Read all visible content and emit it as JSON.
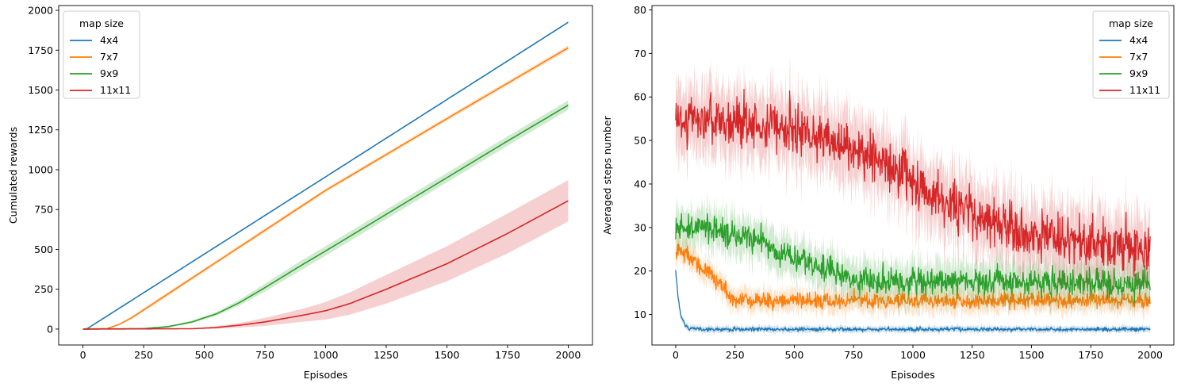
{
  "colors": {
    "4x4": "#1f77b4",
    "7x7": "#ff7f0e",
    "9x9": "#2ca02c",
    "11x11": "#d62728"
  },
  "chart_data": [
    {
      "type": "line",
      "xlabel": "Episodes",
      "ylabel": "Cumulated rewards",
      "xlim": [
        -100,
        2100
      ],
      "ylim": [
        -100,
        2030
      ],
      "xticks": [
        0,
        250,
        500,
        750,
        1000,
        1250,
        1500,
        1750,
        2000
      ],
      "yticks": [
        0,
        250,
        500,
        750,
        1000,
        1250,
        1500,
        1750,
        2000
      ],
      "legend": {
        "title": "map size",
        "position": "top-left"
      },
      "confidence_band": true,
      "series": [
        {
          "name": "4x4",
          "x": [
            0,
            15,
            2000
          ],
          "y": [
            0,
            0,
            1925
          ],
          "band": [
            0,
            0,
            5
          ]
        },
        {
          "name": "7x7",
          "x": [
            0,
            100,
            150,
            200,
            250,
            300,
            500,
            1000,
            1500,
            2000
          ],
          "y": [
            0,
            3,
            30,
            70,
            120,
            170,
            370,
            870,
            1320,
            1765
          ],
          "band": [
            0,
            1,
            5,
            8,
            10,
            12,
            12,
            12,
            13,
            15
          ]
        },
        {
          "name": "9x9",
          "x": [
            0,
            250,
            350,
            450,
            550,
            650,
            750,
            900,
            1000,
            1250,
            1500,
            1750,
            2000
          ],
          "y": [
            0,
            3,
            15,
            45,
            95,
            170,
            260,
            400,
            490,
            720,
            950,
            1180,
            1405
          ],
          "band": [
            0,
            2,
            5,
            8,
            12,
            18,
            25,
            30,
            30,
            30,
            30,
            30,
            30
          ]
        },
        {
          "name": "11x11",
          "x": [
            0,
            450,
            550,
            650,
            750,
            900,
            1000,
            1100,
            1250,
            1500,
            1750,
            2000
          ],
          "y": [
            0,
            2,
            10,
            25,
            45,
            85,
            115,
            160,
            250,
            410,
            600,
            805
          ],
          "band": [
            0,
            2,
            8,
            15,
            25,
            40,
            55,
            70,
            90,
            110,
            125,
            130
          ]
        }
      ]
    },
    {
      "type": "line",
      "xlabel": "Episodes",
      "ylabel": "Averaged steps number",
      "xlim": [
        -100,
        2100
      ],
      "ylim": [
        3,
        81
      ],
      "xticks": [
        0,
        250,
        500,
        750,
        1000,
        1250,
        1500,
        1750,
        2000
      ],
      "yticks": [
        10,
        20,
        30,
        40,
        50,
        60,
        70,
        80
      ],
      "legend": {
        "title": "map size",
        "position": "top-right"
      },
      "confidence_band": true,
      "noisy": true,
      "series": [
        {
          "name": "4x4",
          "x": [
            0,
            10,
            20,
            40,
            60,
            100,
            2000
          ],
          "y": [
            20,
            14,
            10,
            7.5,
            6.8,
            6.6,
            6.6
          ],
          "noise": 0.3,
          "band": 0.6
        },
        {
          "name": "7x7",
          "x": [
            0,
            50,
            100,
            150,
            200,
            240,
            300,
            500,
            2000
          ],
          "y": [
            25,
            24,
            21,
            19,
            16,
            13.5,
            13.3,
            13.2,
            13.2
          ],
          "noise": 1.3,
          "band": 2.0
        },
        {
          "name": "9x9",
          "x": [
            0,
            100,
            200,
            300,
            350,
            450,
            550,
            650,
            750,
            900,
            2000
          ],
          "y": [
            30,
            30,
            29,
            28.5,
            27,
            24,
            22,
            20,
            18,
            17.5,
            17.3
          ],
          "noise": 2.2,
          "band": 3.5
        },
        {
          "name": "11x11",
          "x": [
            0,
            250,
            500,
            700,
            900,
            1100,
            1300,
            1500,
            1750,
            2000
          ],
          "y": [
            55,
            54,
            53,
            49,
            44,
            37,
            32,
            29,
            26.5,
            25
          ],
          "noise": 4.0,
          "band": 6.0
        }
      ]
    }
  ]
}
